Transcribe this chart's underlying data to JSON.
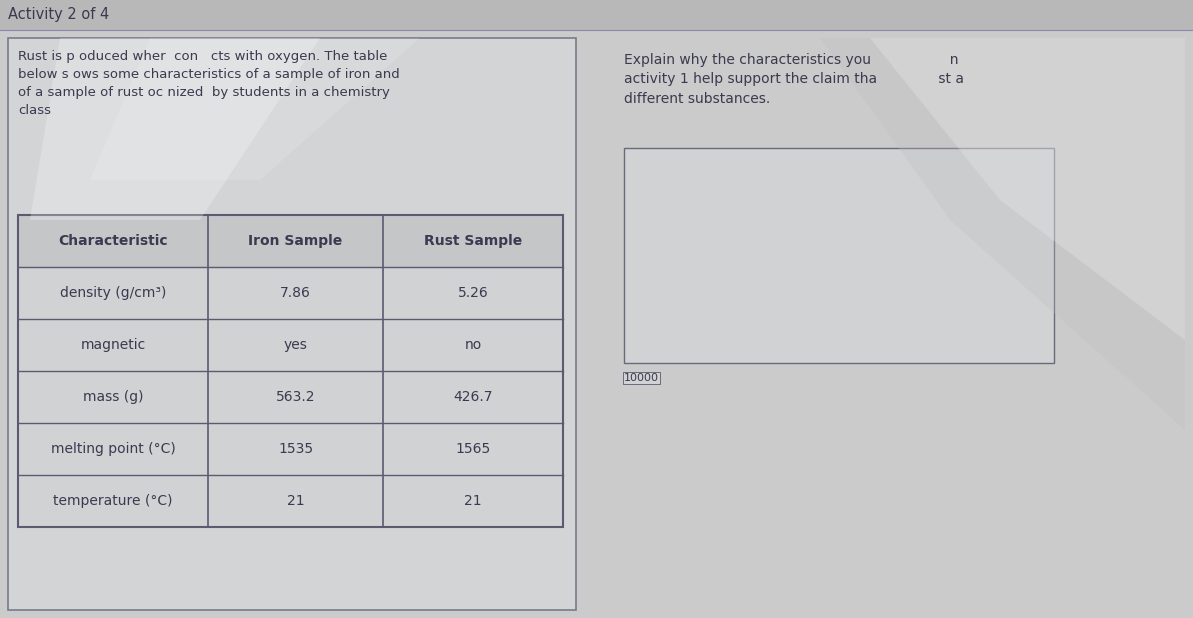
{
  "title": "Activity 2 of 4",
  "bg_color": "#c9c9c9",
  "left_panel": {
    "intro_text": "Rust is p oduced wher  con   cts with oxygen. The table\nbelow s ows some characteristics of a sample of iron and\nof a sample of rust oc nized  by students in a chemistry\nclass",
    "table_headers": [
      "Characteristic",
      "Iron Sample",
      "Rust Sample"
    ],
    "table_rows": [
      [
        "density (g/cm³)",
        "7.86",
        "5.26"
      ],
      [
        "magnetic",
        "yes",
        "no"
      ],
      [
        "mass (g)",
        "563.2",
        "426.7"
      ],
      [
        "melting point (°C)",
        "1535",
        "1565"
      ],
      [
        "temperature (°C)",
        "21",
        "21"
      ]
    ]
  },
  "right_panel": {
    "prompt_text": "Explain why the characteristics you                  n\nactivity 1 help support the claim tha              st a\ndifferent substances.",
    "answer_box_label": "10000"
  },
  "panel_bg": "#d0d0d0",
  "table_bg": "#d4d4d4",
  "header_bg": "#c4c4c4",
  "text_color": "#3a3a50",
  "border_color": "#5a5a70",
  "title_fontsize": 10.5,
  "body_fontsize": 9.5,
  "table_fontsize": 10
}
